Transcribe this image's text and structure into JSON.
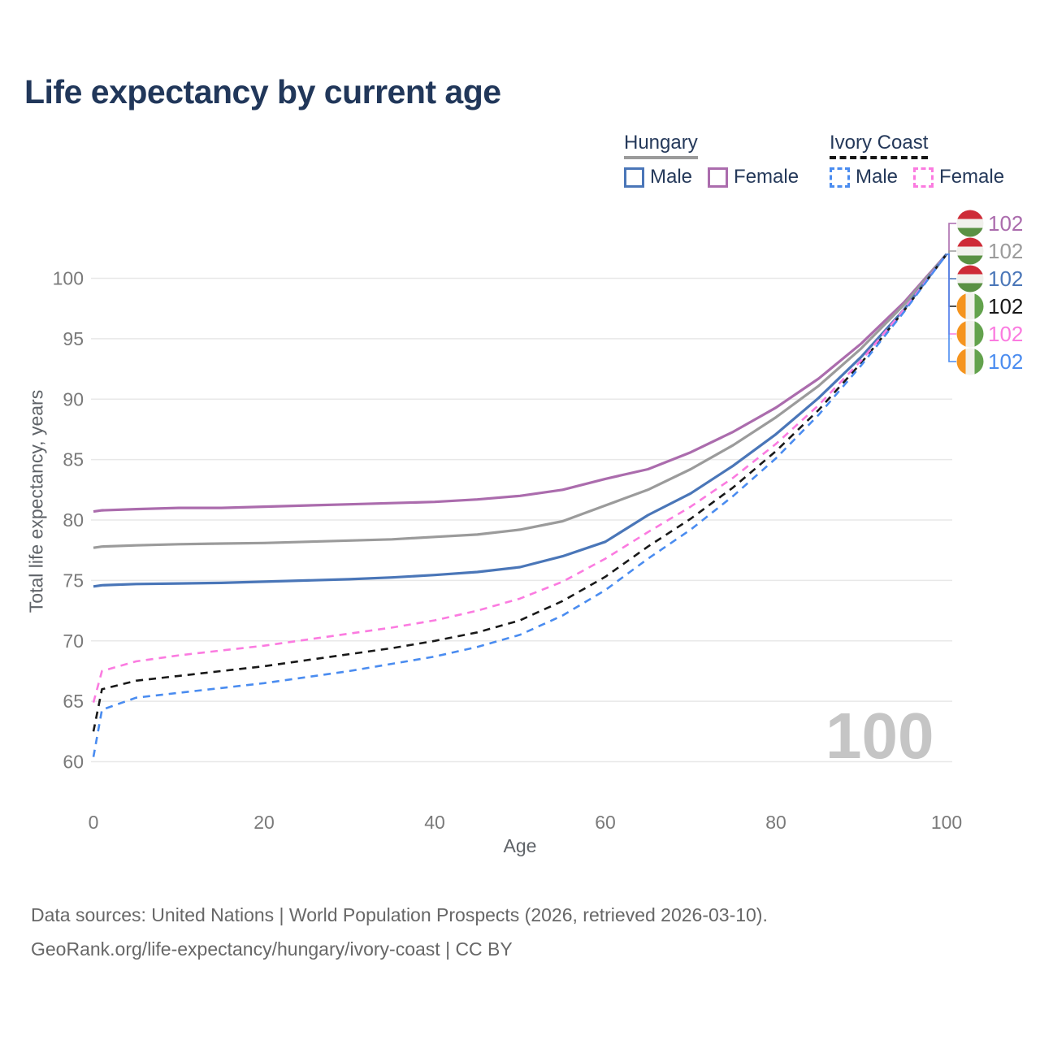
{
  "title": "Life expectancy by current age",
  "watermark": "100",
  "axes": {
    "y_title": "Total life expectancy, years",
    "x_title": "Age"
  },
  "legend": {
    "groups": [
      {
        "label": "Hungary",
        "underline_color": "#9b9b9b",
        "underline_dashed": false,
        "items": [
          {
            "label": "Male",
            "color": "#4a76b8",
            "dashed": false
          },
          {
            "label": "Female",
            "color": "#ab6cad",
            "dashed": false
          }
        ]
      },
      {
        "label": "Ivory Coast",
        "underline_color": "#161616",
        "underline_dashed": true,
        "items": [
          {
            "label": "Male",
            "color": "#4a8cf0",
            "dashed": true
          },
          {
            "label": "Female",
            "color": "#fb7be0",
            "dashed": true
          }
        ]
      }
    ]
  },
  "footer": {
    "line1": "Data sources: United Nations | World Population Prospects (2026, retrieved 2026-03-10).",
    "line2": "GeoRank.org/life-expectancy/hungary/ivory-coast | CC BY"
  },
  "colors": {
    "background": "#ffffff",
    "grid": "#e8e8e8",
    "axis_text": "#7a7a7a",
    "title_text": "#21375a",
    "legend_text": "#25395a",
    "footer_text": "#676767",
    "watermark": "#c5c5c5"
  },
  "flags": {
    "hu": {
      "orientation": "horizontal",
      "colors": [
        "#ce2b37",
        "#f1f1ec",
        "#5a9144"
      ]
    },
    "ci": {
      "orientation": "vertical",
      "colors": [
        "#f5941e",
        "#f1f1ec",
        "#63a24d"
      ]
    }
  },
  "chart_data": {
    "type": "line",
    "title": "Life expectancy by current age",
    "xlabel": "Age",
    "ylabel": "Total life expectancy, years",
    "xlim": [
      0,
      100
    ],
    "ylim": [
      60,
      102
    ],
    "x_ticks": [
      0,
      20,
      40,
      60,
      80,
      100
    ],
    "y_ticks": [
      60,
      65,
      70,
      75,
      80,
      85,
      90,
      95,
      100
    ],
    "grid": "horizontal-only",
    "legend_position": "top-right",
    "x": [
      0,
      1,
      5,
      10,
      15,
      20,
      25,
      30,
      35,
      40,
      45,
      50,
      55,
      60,
      65,
      70,
      75,
      80,
      85,
      90,
      95,
      100
    ],
    "series": [
      {
        "name": "Hungary Female",
        "country": "Hungary",
        "sex": "Female",
        "color": "#ab6cad",
        "dashed": false,
        "flag": "hu",
        "end_label": "102",
        "end_value": 102,
        "label_slot": 0,
        "values": [
          80.7,
          80.8,
          80.9,
          81.0,
          81.0,
          81.1,
          81.2,
          81.3,
          81.4,
          81.5,
          81.7,
          82.0,
          82.5,
          83.4,
          84.2,
          85.6,
          87.3,
          89.3,
          91.7,
          94.6,
          98.0,
          102
        ]
      },
      {
        "name": "Hungary Total",
        "country": "Hungary",
        "sex": "Both sexes",
        "color": "#9b9b9b",
        "dashed": false,
        "flag": "hu",
        "end_label": "102",
        "end_value": 102,
        "label_slot": 1,
        "values": [
          77.7,
          77.8,
          77.9,
          78.0,
          78.05,
          78.1,
          78.2,
          78.3,
          78.4,
          78.6,
          78.8,
          79.2,
          79.9,
          81.2,
          82.5,
          84.2,
          86.2,
          88.5,
          91.1,
          94.2,
          97.8,
          102
        ]
      },
      {
        "name": "Hungary Male",
        "country": "Hungary",
        "sex": "Male",
        "color": "#4a76b8",
        "dashed": false,
        "flag": "hu",
        "end_label": "102",
        "end_value": 102,
        "label_slot": 2,
        "values": [
          74.5,
          74.6,
          74.7,
          74.75,
          74.8,
          74.9,
          75.0,
          75.1,
          75.25,
          75.45,
          75.7,
          76.1,
          77.0,
          78.2,
          80.4,
          82.2,
          84.5,
          87.1,
          90.1,
          93.5,
          97.4,
          102
        ]
      },
      {
        "name": "Ivory Coast Total",
        "country": "Ivory Coast",
        "sex": "Both sexes",
        "color": "#191919",
        "dashed": true,
        "flag": "ci",
        "end_label": "102",
        "end_value": 102,
        "label_slot": 3,
        "values": [
          62.5,
          66.0,
          66.7,
          67.1,
          67.5,
          67.9,
          68.4,
          68.9,
          69.4,
          70.0,
          70.7,
          71.7,
          73.3,
          75.3,
          77.8,
          80.1,
          82.7,
          85.7,
          89.1,
          93.0,
          97.3,
          102
        ]
      },
      {
        "name": "Ivory Coast Female",
        "country": "Ivory Coast",
        "sex": "Female",
        "color": "#fb7be0",
        "dashed": true,
        "flag": "ci",
        "end_label": "102",
        "end_value": 102,
        "label_slot": 4,
        "values": [
          64.9,
          67.5,
          68.3,
          68.8,
          69.2,
          69.6,
          70.1,
          70.6,
          71.1,
          71.7,
          72.5,
          73.5,
          74.9,
          76.8,
          79.0,
          81.1,
          83.5,
          86.3,
          89.5,
          93.2,
          97.4,
          102
        ]
      },
      {
        "name": "Ivory Coast Male",
        "country": "Ivory Coast",
        "sex": "Male",
        "color": "#4a8cf0",
        "dashed": true,
        "flag": "ci",
        "end_label": "102",
        "end_value": 102,
        "label_slot": 5,
        "values": [
          60.4,
          64.3,
          65.3,
          65.7,
          66.1,
          66.5,
          67.0,
          67.5,
          68.1,
          68.7,
          69.5,
          70.5,
          72.1,
          74.2,
          76.8,
          79.2,
          82.0,
          85.1,
          88.7,
          92.8,
          97.2,
          102
        ]
      }
    ]
  }
}
